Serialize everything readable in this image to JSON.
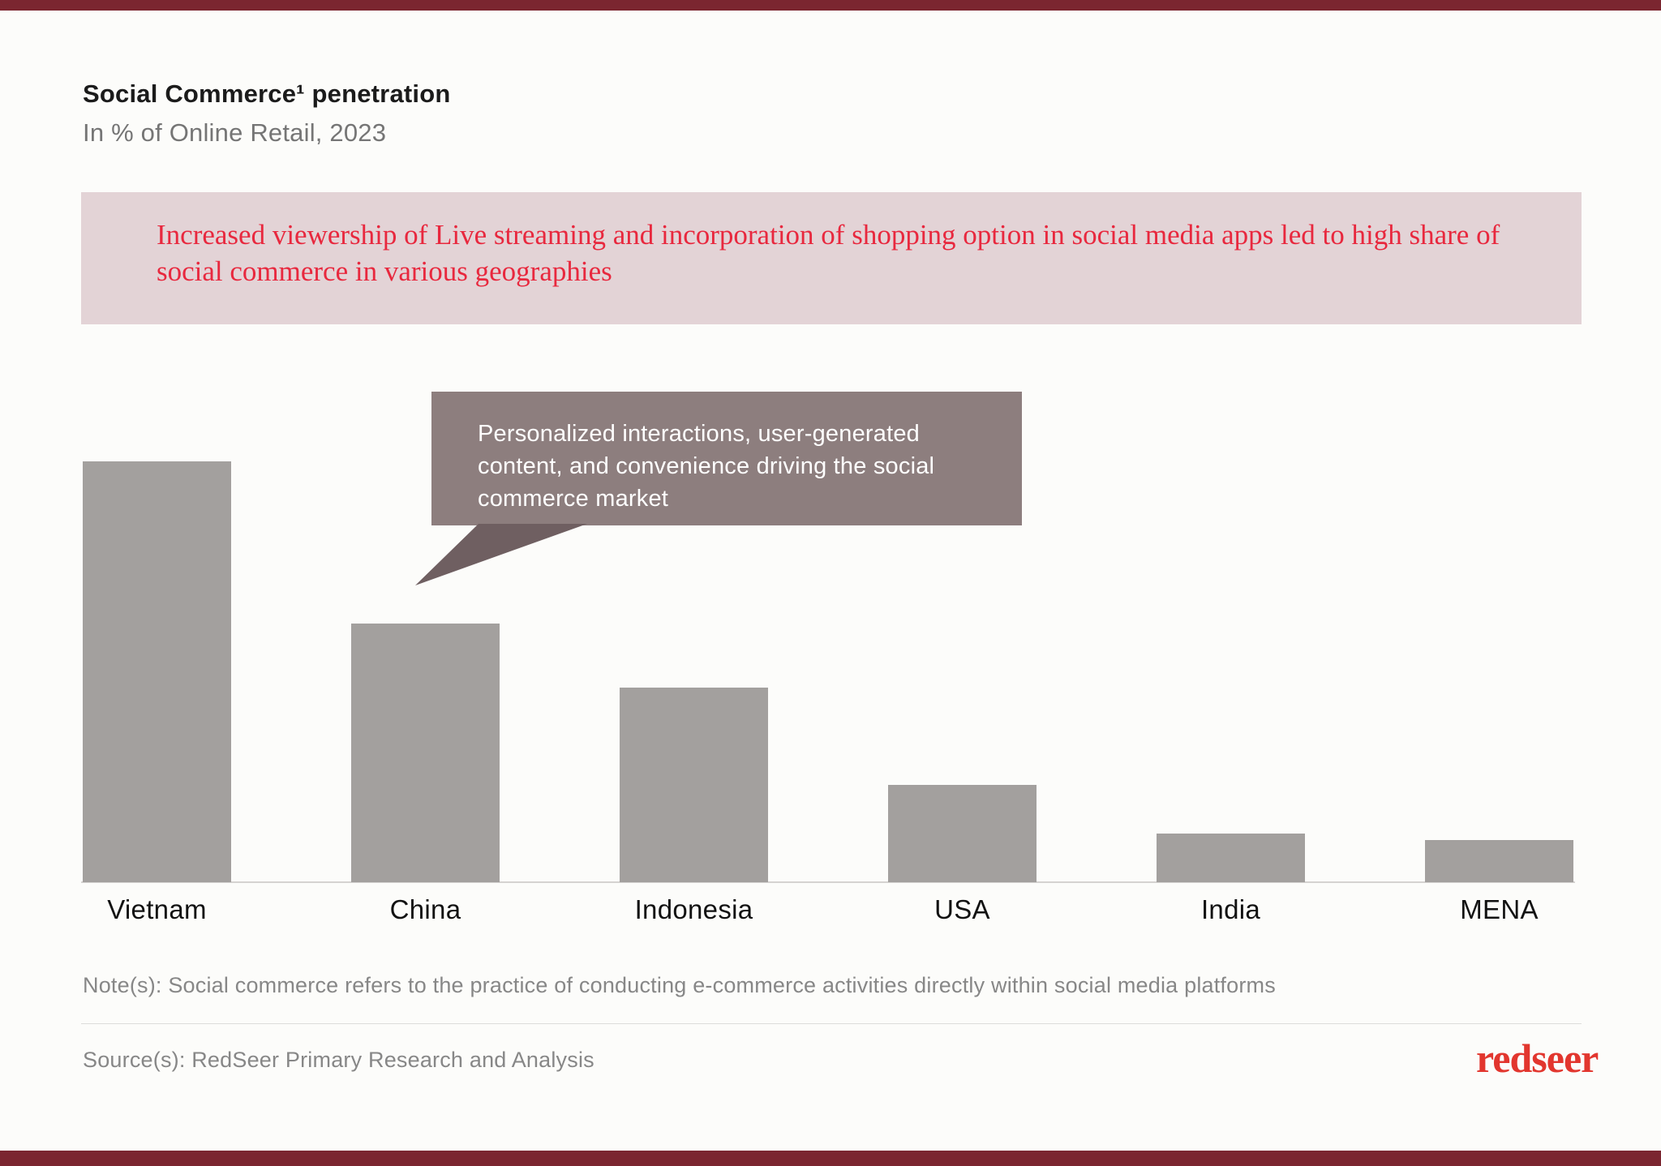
{
  "slide": {
    "title": "Social Commerce¹ penetration",
    "subtitle": "In % of Online Retail, 2023",
    "banner_text": "Increased viewership of Live streaming and incorporation of shopping option in social media apps led to high share of social commerce in various geographies",
    "callout_text": "Personalized interactions, user-generated content, and convenience driving the social commerce market",
    "note_text": "Note(s): Social commerce refers to the practice of conducting e-commerce activities directly within social media platforms",
    "source_text": "Source(s): RedSeer Primary Research and Analysis",
    "logo_text": "redseer"
  },
  "colors": {
    "banner_bg": "#e3d3d6",
    "banner_text_red": "#e8283e",
    "callout_bg": "#8d7e7e",
    "callout_tail": "#6f5f61",
    "bar_gray": "#a3a09e",
    "axis_line": "#d5d3d1",
    "logo_red": "#e2362e",
    "edge_strip_maroon": "#7b2630"
  },
  "chart_data": {
    "type": "bar",
    "title": "Social Commerce penetration",
    "unit": "% of Online Retail, 2023",
    "categories": [
      "Vietnam",
      "China",
      "Indonesia",
      "USA",
      "India",
      "MENA"
    ],
    "values": [
      65,
      40,
      30,
      15,
      7.5,
      6.5
    ],
    "values_are_estimates_no_data_labels_shown": true,
    "ylim": [
      0,
      70
    ],
    "grid": false,
    "legend": false,
    "bar_color": "#a3a09e"
  }
}
